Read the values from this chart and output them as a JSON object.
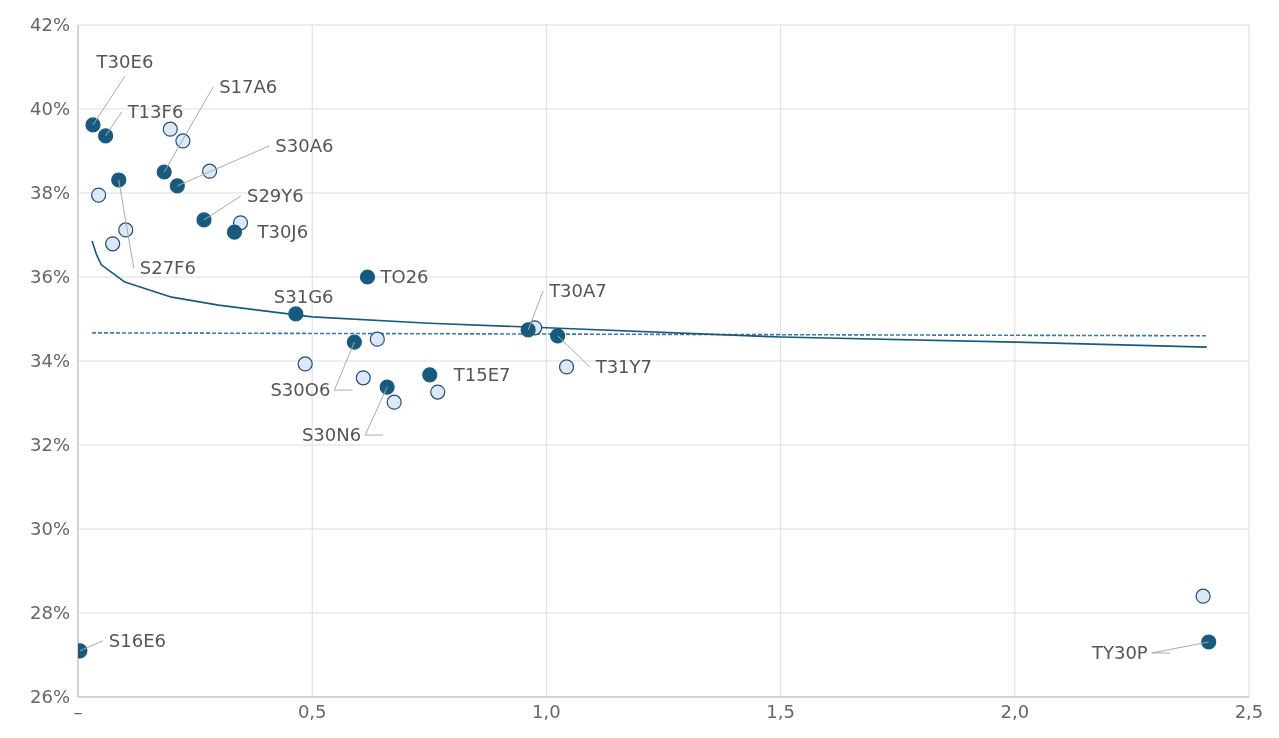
{
  "chart_data": {
    "type": "scatter",
    "xlim": [
      0,
      2.5
    ],
    "ylim": [
      26,
      42
    ],
    "xticks": [
      {
        "value": 0,
        "label": "–"
      },
      {
        "value": 0.5,
        "label": "0,5"
      },
      {
        "value": 1,
        "label": "1,0"
      },
      {
        "value": 1.5,
        "label": "1,5"
      },
      {
        "value": 2,
        "label": "2,0"
      },
      {
        "value": 2.5,
        "label": "2,5"
      }
    ],
    "yticks": [
      {
        "value": 26,
        "label": "26%"
      },
      {
        "value": 28,
        "label": "28%"
      },
      {
        "value": 30,
        "label": "30%"
      },
      {
        "value": 32,
        "label": "32%"
      },
      {
        "value": 34,
        "label": "34%"
      },
      {
        "value": 36,
        "label": "36%"
      },
      {
        "value": 38,
        "label": "38%"
      },
      {
        "value": 40,
        "label": "40%"
      },
      {
        "value": 42,
        "label": "42%"
      }
    ],
    "grid": true,
    "legend": false,
    "series": [
      {
        "color": "#dce8f5",
        "marker": "circle",
        "x": [
          0.197,
          0.224,
          0.281,
          0.044,
          0.102,
          0.074,
          0.347,
          0.485,
          0.639,
          0.609,
          0.675,
          0.768,
          0.975,
          1.043,
          2.402
        ],
        "values": [
          39.52,
          39.24,
          38.52,
          37.95,
          37.12,
          36.79,
          37.29,
          33.93,
          34.52,
          33.6,
          33.02,
          33.26,
          34.79,
          33.86,
          28.4
        ]
      },
      {
        "type": "line",
        "color": "#3a78b5",
        "line_style": "dashed",
        "marker": "none",
        "x": [
          0.03,
          2.41
        ],
        "values": [
          34.67,
          34.6
        ]
      },
      {
        "type": "line",
        "color": "#175a7e",
        "line_style": "solid",
        "marker": "none",
        "x": [
          0.03,
          0.04,
          0.05,
          0.1,
          0.2,
          0.3,
          0.5,
          0.75,
          1.0,
          1.5,
          2.0,
          2.41
        ],
        "values": [
          36.86,
          36.52,
          36.29,
          35.88,
          35.52,
          35.33,
          35.05,
          34.9,
          34.79,
          34.57,
          34.45,
          34.33
        ]
      },
      {
        "color": "#175a7e",
        "marker": "circle",
        "x": [
          0.032,
          0.059,
          0.184,
          0.212,
          0.087,
          0.269,
          0.334,
          0.618,
          0.465,
          0.961,
          1.024,
          0.59,
          0.751,
          0.66,
          0.004,
          2.414
        ],
        "values": [
          39.62,
          39.36,
          38.5,
          38.17,
          38.31,
          37.36,
          37.07,
          36.0,
          35.12,
          34.74,
          34.6,
          34.45,
          33.67,
          33.38,
          27.1,
          27.31
        ]
      }
    ],
    "annotations": [
      {
        "text": "T30E6",
        "x": 0.032,
        "y": 39.62
      },
      {
        "text": "T13F6",
        "x": 0.059,
        "y": 39.36
      },
      {
        "text": "S17A6",
        "x": 0.184,
        "y": 38.5
      },
      {
        "text": "S30A6",
        "x": 0.212,
        "y": 38.17
      },
      {
        "text": "S27F6",
        "x": 0.087,
        "y": 38.31
      },
      {
        "text": "S29Y6",
        "x": 0.269,
        "y": 37.36
      },
      {
        "text": "T30J6",
        "x": 0.334,
        "y": 37.07
      },
      {
        "text": "TO26",
        "x": 0.618,
        "y": 36.0
      },
      {
        "text": "S31G6",
        "x": 0.465,
        "y": 35.12
      },
      {
        "text": "T30A7",
        "x": 0.961,
        "y": 34.74
      },
      {
        "text": "T31Y7",
        "x": 1.024,
        "y": 34.6
      },
      {
        "text": "S30O6",
        "x": 0.59,
        "y": 34.45
      },
      {
        "text": "T15E7",
        "x": 0.751,
        "y": 33.67
      },
      {
        "text": "S30N6",
        "x": 0.66,
        "y": 33.38
      },
      {
        "text": "S16E6",
        "x": 0.004,
        "y": 27.1
      },
      {
        "text": "TY30P",
        "x": 2.414,
        "y": 27.31
      }
    ]
  }
}
